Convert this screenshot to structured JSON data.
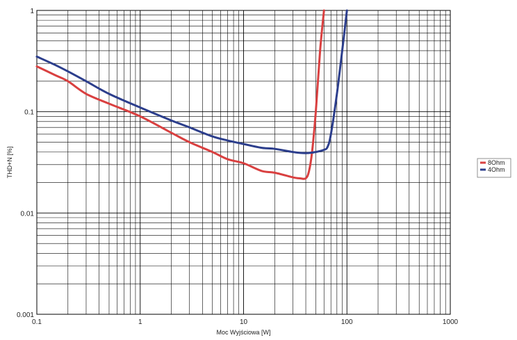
{
  "chart_data": {
    "type": "line",
    "xlabel": "Moc Wyjściowa [W]",
    "ylabel": "THD+N [%]",
    "x_scale": "log",
    "y_scale": "log",
    "xlim": [
      0.1,
      1000
    ],
    "ylim": [
      0.001,
      1
    ],
    "grid": true,
    "legend_position": "right",
    "x_ticks": [
      "0.1",
      "1",
      "10",
      "100",
      "1000"
    ],
    "y_ticks": [
      "1",
      "0.1",
      "0.01",
      "0.001"
    ],
    "series": [
      {
        "name": "8Ohm",
        "color": "#d94040",
        "x": [
          0.1,
          0.15,
          0.2,
          0.3,
          0.5,
          1,
          2,
          3,
          5,
          7,
          10,
          15,
          20,
          30,
          35,
          40,
          43,
          46,
          50,
          55,
          60
        ],
        "y": [
          0.28,
          0.23,
          0.2,
          0.15,
          0.12,
          0.09,
          0.062,
          0.05,
          0.04,
          0.034,
          0.031,
          0.026,
          0.025,
          0.0225,
          0.022,
          0.022,
          0.026,
          0.04,
          0.1,
          0.4,
          1.0
        ]
      },
      {
        "name": "4Ohm",
        "color": "#2c3e8c",
        "x": [
          0.1,
          0.15,
          0.2,
          0.3,
          0.5,
          1,
          2,
          3,
          5,
          7,
          10,
          15,
          20,
          30,
          40,
          50,
          60,
          65,
          70,
          80,
          90,
          100
        ],
        "y": [
          0.35,
          0.29,
          0.25,
          0.2,
          0.15,
          0.11,
          0.082,
          0.07,
          0.057,
          0.052,
          0.048,
          0.044,
          0.043,
          0.04,
          0.039,
          0.04,
          0.042,
          0.045,
          0.06,
          0.15,
          0.4,
          1.0
        ]
      }
    ]
  }
}
